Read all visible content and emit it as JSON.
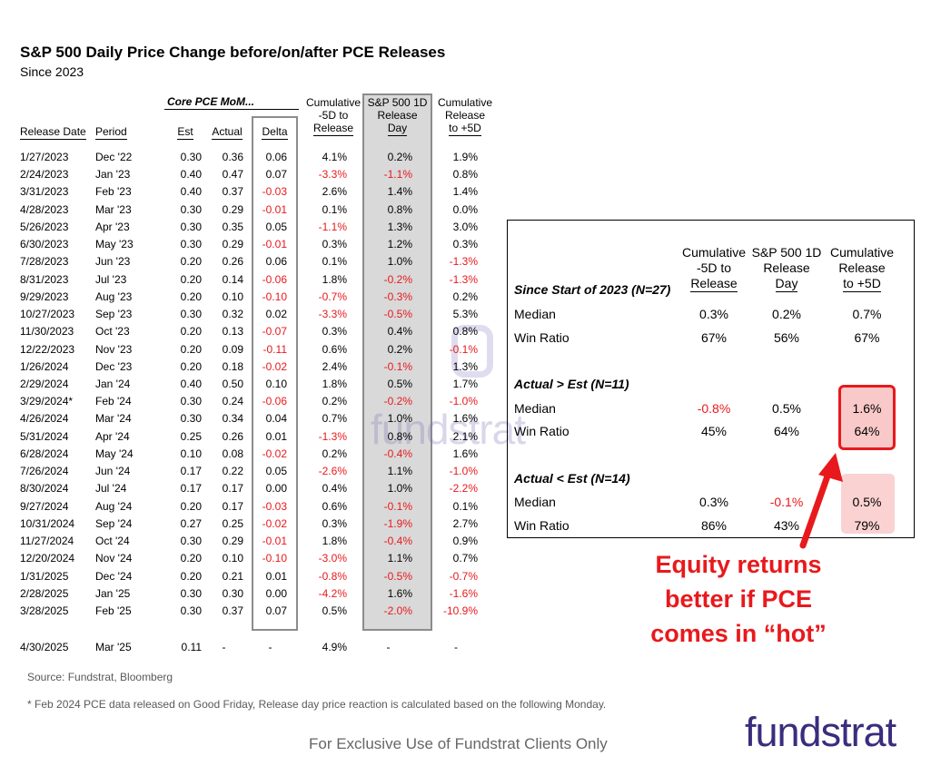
{
  "title": "S&P 500 Daily Price Change before/on/after PCE Releases",
  "subtitle": "Since 2023",
  "table": {
    "group_label": "Core PCE MoM...",
    "headers": {
      "release_date": "Release Date",
      "period": "Period",
      "est": "Est",
      "actual": "Actual",
      "delta": "Delta",
      "cum_before": [
        "Cumulative",
        "-5D to",
        "Release"
      ],
      "release_day": [
        "S&P 500 1D",
        "Release",
        "Day"
      ],
      "cum_after": [
        "Cumulative",
        "Release",
        "to +5D"
      ]
    },
    "rows": [
      {
        "date": "1/27/2023",
        "period": "Dec '22",
        "est": "0.30",
        "actual": "0.36",
        "delta": "0.06",
        "before": "4.1%",
        "day": "0.2%",
        "after": "1.9%"
      },
      {
        "date": "2/24/2023",
        "period": "Jan '23",
        "est": "0.40",
        "actual": "0.47",
        "delta": "0.07",
        "before": "-3.3%",
        "day": "-1.1%",
        "after": "0.8%"
      },
      {
        "date": "3/31/2023",
        "period": "Feb '23",
        "est": "0.40",
        "actual": "0.37",
        "delta": "-0.03",
        "before": "2.6%",
        "day": "1.4%",
        "after": "1.4%"
      },
      {
        "date": "4/28/2023",
        "period": "Mar '23",
        "est": "0.30",
        "actual": "0.29",
        "delta": "-0.01",
        "before": "0.1%",
        "day": "0.8%",
        "after": "0.0%"
      },
      {
        "date": "5/26/2023",
        "period": "Apr '23",
        "est": "0.30",
        "actual": "0.35",
        "delta": "0.05",
        "before": "-1.1%",
        "day": "1.3%",
        "after": "3.0%"
      },
      {
        "date": "6/30/2023",
        "period": "May '23",
        "est": "0.30",
        "actual": "0.29",
        "delta": "-0.01",
        "before": "0.3%",
        "day": "1.2%",
        "after": "0.3%"
      },
      {
        "date": "7/28/2023",
        "period": "Jun '23",
        "est": "0.20",
        "actual": "0.26",
        "delta": "0.06",
        "before": "0.1%",
        "day": "1.0%",
        "after": "-1.3%"
      },
      {
        "date": "8/31/2023",
        "period": "Jul '23",
        "est": "0.20",
        "actual": "0.14",
        "delta": "-0.06",
        "before": "1.8%",
        "day": "-0.2%",
        "after": "-1.3%"
      },
      {
        "date": "9/29/2023",
        "period": "Aug '23",
        "est": "0.20",
        "actual": "0.10",
        "delta": "-0.10",
        "before": "-0.7%",
        "day": "-0.3%",
        "after": "0.2%"
      },
      {
        "date": "10/27/2023",
        "period": "Sep '23",
        "est": "0.30",
        "actual": "0.32",
        "delta": "0.02",
        "before": "-3.3%",
        "day": "-0.5%",
        "after": "5.3%"
      },
      {
        "date": "11/30/2023",
        "period": "Oct '23",
        "est": "0.20",
        "actual": "0.13",
        "delta": "-0.07",
        "before": "0.3%",
        "day": "0.4%",
        "after": "0.8%"
      },
      {
        "date": "12/22/2023",
        "period": "Nov '23",
        "est": "0.20",
        "actual": "0.09",
        "delta": "-0.11",
        "before": "0.6%",
        "day": "0.2%",
        "after": "-0.1%"
      },
      {
        "date": "1/26/2024",
        "period": "Dec '23",
        "est": "0.20",
        "actual": "0.18",
        "delta": "-0.02",
        "before": "2.4%",
        "day": "-0.1%",
        "after": "1.3%"
      },
      {
        "date": "2/29/2024",
        "period": "Jan '24",
        "est": "0.40",
        "actual": "0.50",
        "delta": "0.10",
        "before": "1.8%",
        "day": "0.5%",
        "after": "1.7%"
      },
      {
        "date": "3/29/2024*",
        "period": "Feb '24",
        "est": "0.30",
        "actual": "0.24",
        "delta": "-0.06",
        "before": "0.2%",
        "day": "-0.2%",
        "after": "-1.0%"
      },
      {
        "date": "4/26/2024",
        "period": "Mar '24",
        "est": "0.30",
        "actual": "0.34",
        "delta": "0.04",
        "before": "0.7%",
        "day": "1.0%",
        "after": "1.6%"
      },
      {
        "date": "5/31/2024",
        "period": "Apr '24",
        "est": "0.25",
        "actual": "0.26",
        "delta": "0.01",
        "before": "-1.3%",
        "day": "0.8%",
        "after": "2.1%"
      },
      {
        "date": "6/28/2024",
        "period": "May '24",
        "est": "0.10",
        "actual": "0.08",
        "delta": "-0.02",
        "before": "0.2%",
        "day": "-0.4%",
        "after": "1.6%"
      },
      {
        "date": "7/26/2024",
        "period": "Jun '24",
        "est": "0.17",
        "actual": "0.22",
        "delta": "0.05",
        "before": "-2.6%",
        "day": "1.1%",
        "after": "-1.0%"
      },
      {
        "date": "8/30/2024",
        "period": "Jul '24",
        "est": "0.17",
        "actual": "0.17",
        "delta": "0.00",
        "before": "0.4%",
        "day": "1.0%",
        "after": "-2.2%"
      },
      {
        "date": "9/27/2024",
        "period": "Aug '24",
        "est": "0.20",
        "actual": "0.17",
        "delta": "-0.03",
        "before": "0.6%",
        "day": "-0.1%",
        "after": "0.1%"
      },
      {
        "date": "10/31/2024",
        "period": "Sep '24",
        "est": "0.27",
        "actual": "0.25",
        "delta": "-0.02",
        "before": "0.3%",
        "day": "-1.9%",
        "after": "2.7%"
      },
      {
        "date": "11/27/2024",
        "period": "Oct '24",
        "est": "0.30",
        "actual": "0.29",
        "delta": "-0.01",
        "before": "1.8%",
        "day": "-0.4%",
        "after": "0.9%"
      },
      {
        "date": "12/20/2024",
        "period": "Nov '24",
        "est": "0.20",
        "actual": "0.10",
        "delta": "-0.10",
        "before": "-3.0%",
        "day": "1.1%",
        "after": "0.7%"
      },
      {
        "date": "1/31/2025",
        "period": "Dec '24",
        "est": "0.20",
        "actual": "0.21",
        "delta": "0.01",
        "before": "-0.8%",
        "day": "-0.5%",
        "after": "-0.7%"
      },
      {
        "date": "2/28/2025",
        "period": "Jan '25",
        "est": "0.30",
        "actual": "0.30",
        "delta": "0.00",
        "before": "-4.2%",
        "day": "1.6%",
        "after": "-1.6%"
      },
      {
        "date": "3/28/2025",
        "period": "Feb '25",
        "est": "0.30",
        "actual": "0.37",
        "delta": "0.07",
        "before": "0.5%",
        "day": "-2.0%",
        "after": "-10.9%"
      }
    ],
    "pending": {
      "date": "4/30/2025",
      "period": "Mar '25",
      "est": "0.11",
      "actual": "-",
      "delta": "-",
      "before": "4.9%",
      "day": "-",
      "after": "-"
    }
  },
  "summary": {
    "headers": {
      "cum_before": [
        "Cumulative",
        "-5D to",
        "Release"
      ],
      "release_day": [
        "S&P 500 1D",
        "Release",
        "Day"
      ],
      "cum_after": [
        "Cumulative",
        "Release",
        "to +5D"
      ]
    },
    "sections": [
      {
        "title": "Since Start of 2023 (N=27)",
        "rows": [
          {
            "label": "Median",
            "before": "0.3%",
            "day": "0.2%",
            "after": "0.7%"
          },
          {
            "label": "Win Ratio",
            "before": "67%",
            "day": "56%",
            "after": "67%"
          }
        ]
      },
      {
        "title": "Actual > Est (N=11)",
        "rows": [
          {
            "label": "Median",
            "before": "-0.8%",
            "day": "0.5%",
            "after": "1.6%"
          },
          {
            "label": "Win Ratio",
            "before": "45%",
            "day": "64%",
            "after": "64%"
          }
        ]
      },
      {
        "title": "Actual < Est (N=14)",
        "rows": [
          {
            "label": "Median",
            "before": "0.3%",
            "day": "-0.1%",
            "after": "0.5%"
          },
          {
            "label": "Win Ratio",
            "before": "86%",
            "day": "43%",
            "after": "79%"
          }
        ]
      }
    ]
  },
  "callout": [
    "Equity returns",
    "better if PCE",
    "comes in “hot”"
  ],
  "source": "Source: Fundstrat, Bloomberg",
  "footnote": "* Feb 2024 PCE data released on Good Friday, Release day price reaction is calculated based on the following Monday.",
  "exclusive": "For Exclusive Use of Fundstrat Clients Only",
  "logo": "fundstrat",
  "watermark": "fundstrat",
  "colors": {
    "negative": "#e8191c",
    "brand": "#3a2d7d",
    "highlight": "#f9c9c9"
  }
}
